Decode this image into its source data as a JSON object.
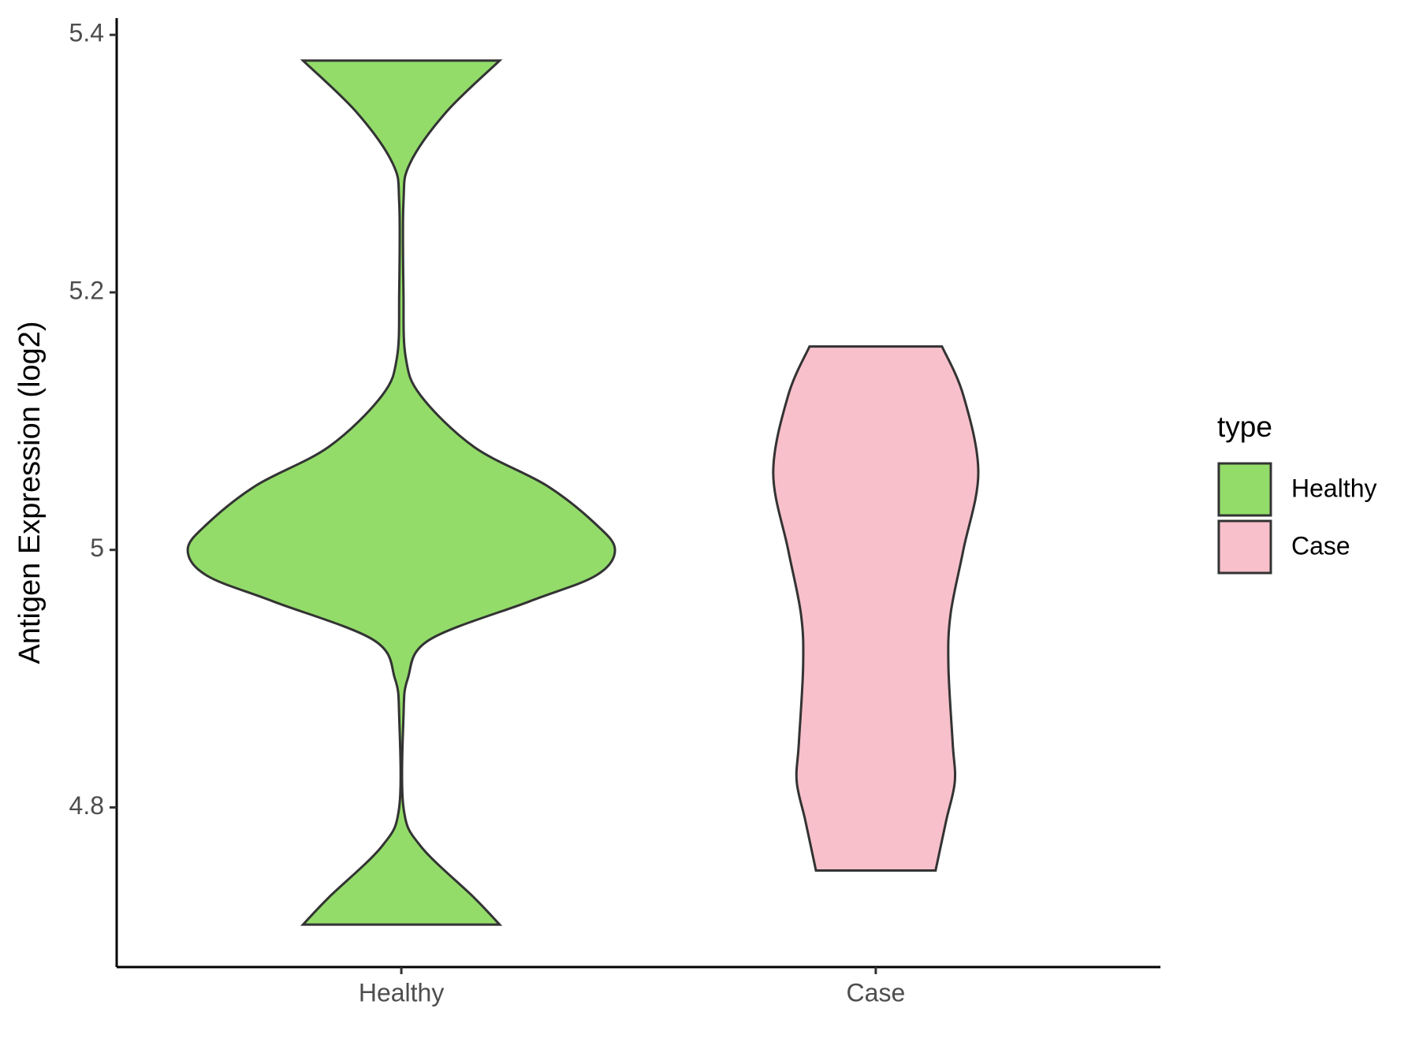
{
  "chart_data": {
    "type": "violin",
    "y_label": "Antigen Expression (log2)",
    "categories": [
      "Healthy",
      "Case"
    ],
    "legend_title": "type",
    "legend_position": "right",
    "ylim": [
      4.676,
      5.413
    ],
    "yticks": [
      4.8,
      5.0,
      5.2,
      5.4
    ],
    "series": [
      {
        "name": "Healthy",
        "color": "#93dc6a",
        "y": [
          5.38,
          5.34,
          5.3,
          5.27,
          5.2,
          5.15,
          5.12,
          5.08,
          5.05,
          5.02,
          5.0,
          4.98,
          4.96,
          4.93,
          4.9,
          4.87,
          4.8,
          4.77,
          4.73,
          4.709
        ],
        "density": [
          0.46,
          0.21,
          0.04,
          0.01,
          0.01,
          0.02,
          0.09,
          0.34,
          0.68,
          0.91,
          1.0,
          0.91,
          0.6,
          0.13,
          0.03,
          0.01,
          0.01,
          0.09,
          0.34,
          0.46
        ]
      },
      {
        "name": "Case",
        "color": "#f8c0cb",
        "y": [
          5.158,
          5.12,
          5.06,
          5.0,
          4.95,
          4.91,
          4.85,
          4.82,
          4.79,
          4.751
        ],
        "density": [
          0.31,
          0.41,
          0.48,
          0.41,
          0.35,
          0.34,
          0.36,
          0.37,
          0.33,
          0.28
        ]
      }
    ]
  }
}
